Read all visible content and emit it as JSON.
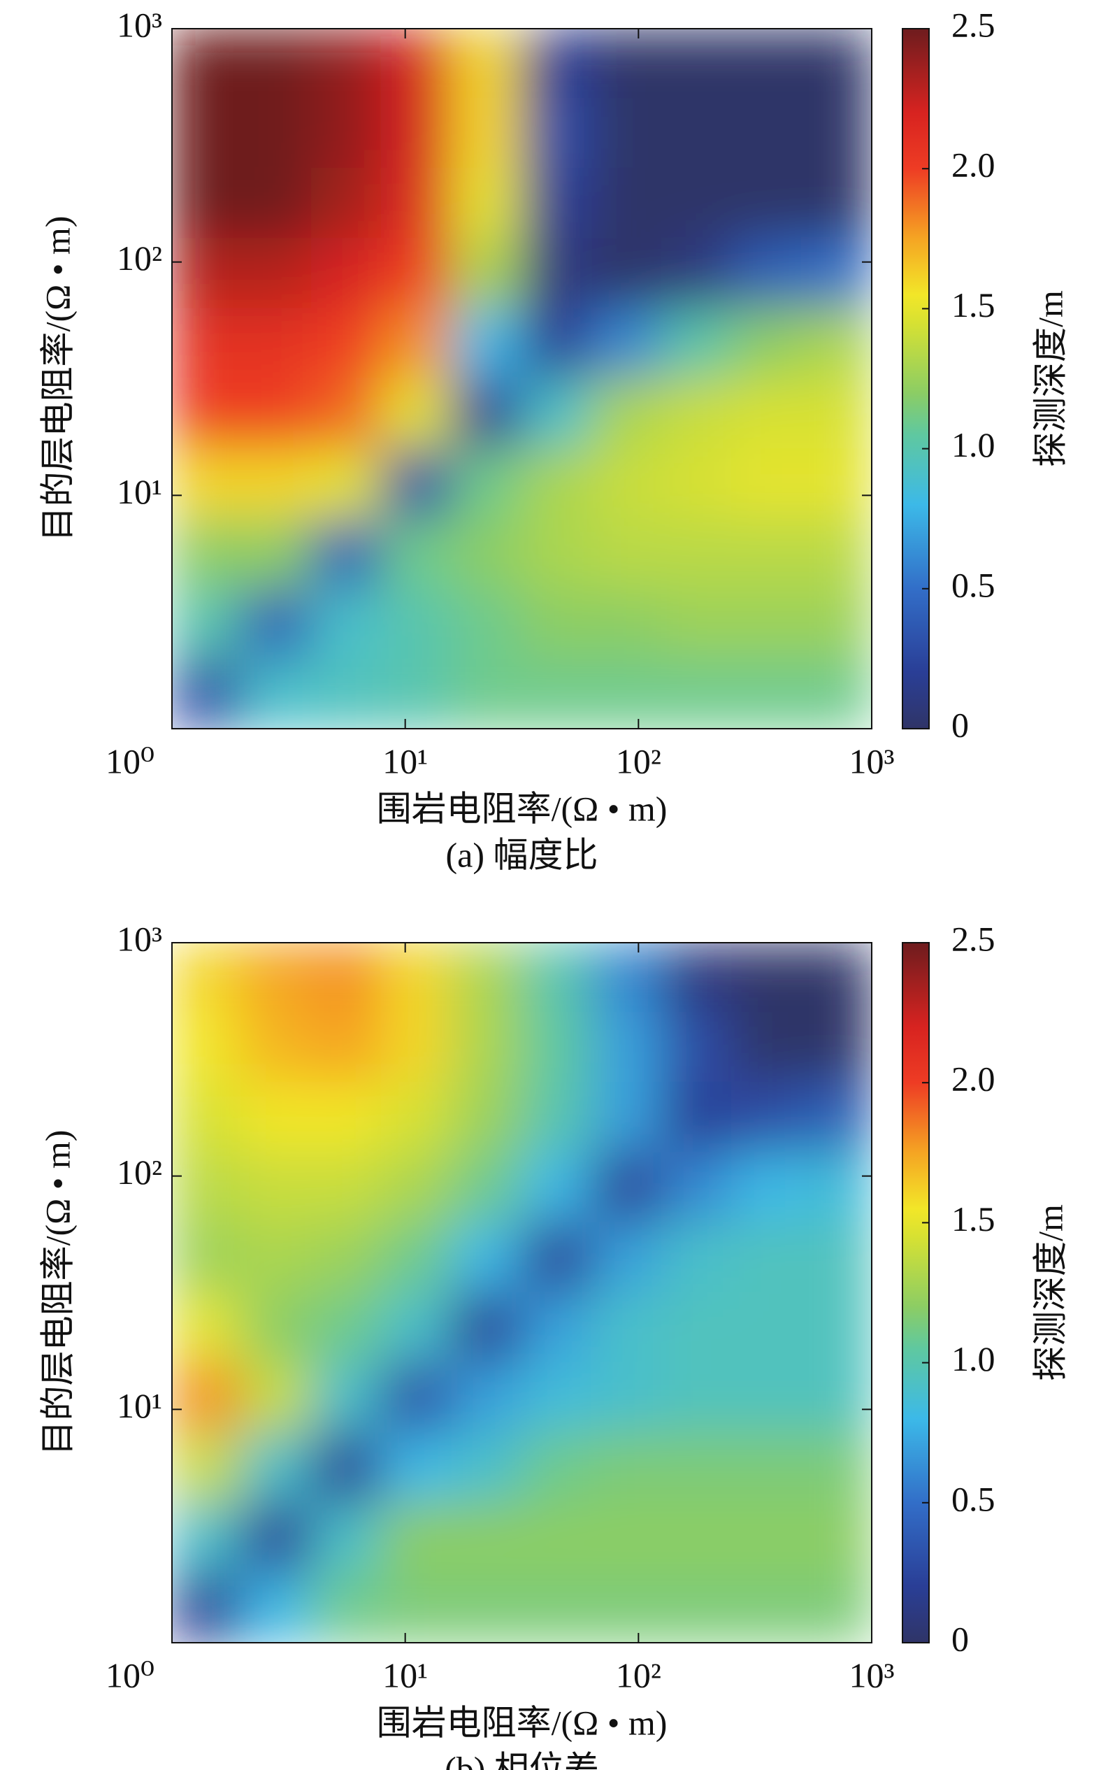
{
  "chart_data": [
    {
      "type": "heatmap",
      "caption": "(a) 幅度比",
      "x_label": "围岩电阻率/(Ω • m)",
      "y_label": "目的层电阻率/(Ω • m)",
      "colorbar_label": "探测深度/m",
      "xlog": true,
      "ylog": true,
      "colormap": "jet",
      "xlim": [
        1,
        1000
      ],
      "ylim": [
        1,
        1000
      ],
      "zlim": [
        0,
        2.5
      ],
      "xticks": [
        {
          "value": 1,
          "label": "10⁰"
        },
        {
          "value": 10,
          "label": "10¹"
        },
        {
          "value": 100,
          "label": "10²"
        },
        {
          "value": 1000,
          "label": "10³"
        }
      ],
      "yticks": [
        {
          "value": 10,
          "label": "10¹"
        },
        {
          "value": 100,
          "label": "10²"
        },
        {
          "value": 1000,
          "label": "10³"
        }
      ],
      "zticks": [
        0,
        0.5,
        {
          "value": 1,
          "label": "1.0"
        },
        1.5,
        {
          "value": 2,
          "label": "2.0"
        },
        2.5
      ],
      "x": [
        1.4,
        2.8,
        5.6,
        11.2,
        22.4,
        44.7,
        89.1,
        178,
        355,
        708
      ],
      "y": [
        708,
        355,
        178,
        89.1,
        44.7,
        22.4,
        11.2,
        5.6,
        2.8,
        1.4
      ],
      "values": [
        [
          2.5,
          2.5,
          2.4,
          2.2,
          1.6,
          0.2,
          0,
          0,
          0,
          0
        ],
        [
          2.5,
          2.5,
          2.4,
          2.2,
          1.6,
          0.3,
          0,
          0,
          0,
          0
        ],
        [
          2.5,
          2.5,
          2.35,
          2.15,
          1.5,
          0.2,
          0,
          0,
          0,
          0
        ],
        [
          2.3,
          2.3,
          2.2,
          2.0,
          1.3,
          0.1,
          0,
          0.1,
          0.4,
          0.5
        ],
        [
          2.1,
          2.1,
          2.0,
          1.8,
          0.8,
          0.2,
          0.6,
          1.0,
          1.2,
          1.3
        ],
        [
          2.0,
          2.0,
          1.9,
          1.5,
          0.2,
          0.9,
          1.3,
          1.4,
          1.45,
          1.45
        ],
        [
          1.6,
          1.6,
          1.5,
          0.3,
          1.1,
          1.3,
          1.4,
          1.45,
          1.5,
          1.5
        ],
        [
          1.2,
          1.2,
          0.4,
          1.1,
          1.2,
          1.3,
          1.35,
          1.35,
          1.35,
          1.35
        ],
        [
          1.0,
          0.4,
          0.9,
          1.0,
          1.1,
          1.2,
          1.2,
          1.25,
          1.25,
          1.25
        ],
        [
          0.3,
          0.9,
          0.95,
          1.0,
          1.1,
          1.1,
          1.1,
          1.1,
          1.1,
          1.1
        ]
      ]
    },
    {
      "type": "heatmap",
      "caption": "(b) 相位差",
      "x_label": "围岩电阻率/(Ω • m)",
      "y_label": "目的层电阻率/(Ω • m)",
      "colorbar_label": "探测深度/m",
      "xlog": true,
      "ylog": true,
      "colormap": "jet",
      "xlim": [
        1,
        1000
      ],
      "ylim": [
        1,
        1000
      ],
      "zlim": [
        0,
        2.5
      ],
      "xticks": [
        {
          "value": 1,
          "label": "10⁰"
        },
        {
          "value": 10,
          "label": "10¹"
        },
        {
          "value": 100,
          "label": "10²"
        },
        {
          "value": 1000,
          "label": "10³"
        }
      ],
      "yticks": [
        {
          "value": 10,
          "label": "10¹"
        },
        {
          "value": 100,
          "label": "10²"
        },
        {
          "value": 1000,
          "label": "10³"
        }
      ],
      "zticks": [
        0,
        0.5,
        {
          "value": 1,
          "label": "1.0"
        },
        1.5,
        {
          "value": 2,
          "label": "2.0"
        },
        2.5
      ],
      "x": [
        1.4,
        2.8,
        5.6,
        11.2,
        22.4,
        44.7,
        89.1,
        178,
        355,
        708
      ],
      "y": [
        708,
        355,
        178,
        89.1,
        44.7,
        22.4,
        11.2,
        5.6,
        2.8,
        1.4
      ],
      "values": [
        [
          1.6,
          1.75,
          1.8,
          1.6,
          1.3,
          1.0,
          0.6,
          0.1,
          0,
          0
        ],
        [
          1.55,
          1.7,
          1.75,
          1.6,
          1.3,
          1.05,
          0.7,
          0.3,
          0,
          0
        ],
        [
          1.45,
          1.55,
          1.55,
          1.45,
          1.25,
          1.0,
          0.7,
          0.2,
          0.3,
          0.4
        ],
        [
          1.35,
          1.4,
          1.4,
          1.3,
          1.1,
          0.8,
          0.2,
          0.6,
          0.8,
          0.85
        ],
        [
          1.25,
          1.3,
          1.25,
          1.1,
          0.8,
          0.2,
          0.7,
          0.9,
          0.95,
          0.95
        ],
        [
          1.5,
          1.2,
          1.1,
          0.9,
          0.2,
          0.7,
          0.9,
          0.95,
          0.95,
          0.95
        ],
        [
          1.8,
          1.4,
          0.9,
          0.3,
          0.7,
          0.85,
          0.9,
          0.95,
          0.95,
          0.95
        ],
        [
          1.4,
          0.9,
          0.2,
          0.8,
          0.9,
          1.1,
          1.15,
          1.15,
          1.15,
          1.15
        ],
        [
          0.9,
          0.2,
          0.9,
          1.2,
          1.2,
          1.2,
          1.2,
          1.2,
          1.2,
          1.2
        ],
        [
          0.2,
          0.8,
          1.1,
          1.15,
          1.15,
          1.15,
          1.15,
          1.15,
          1.15,
          1.15
        ]
      ]
    }
  ]
}
